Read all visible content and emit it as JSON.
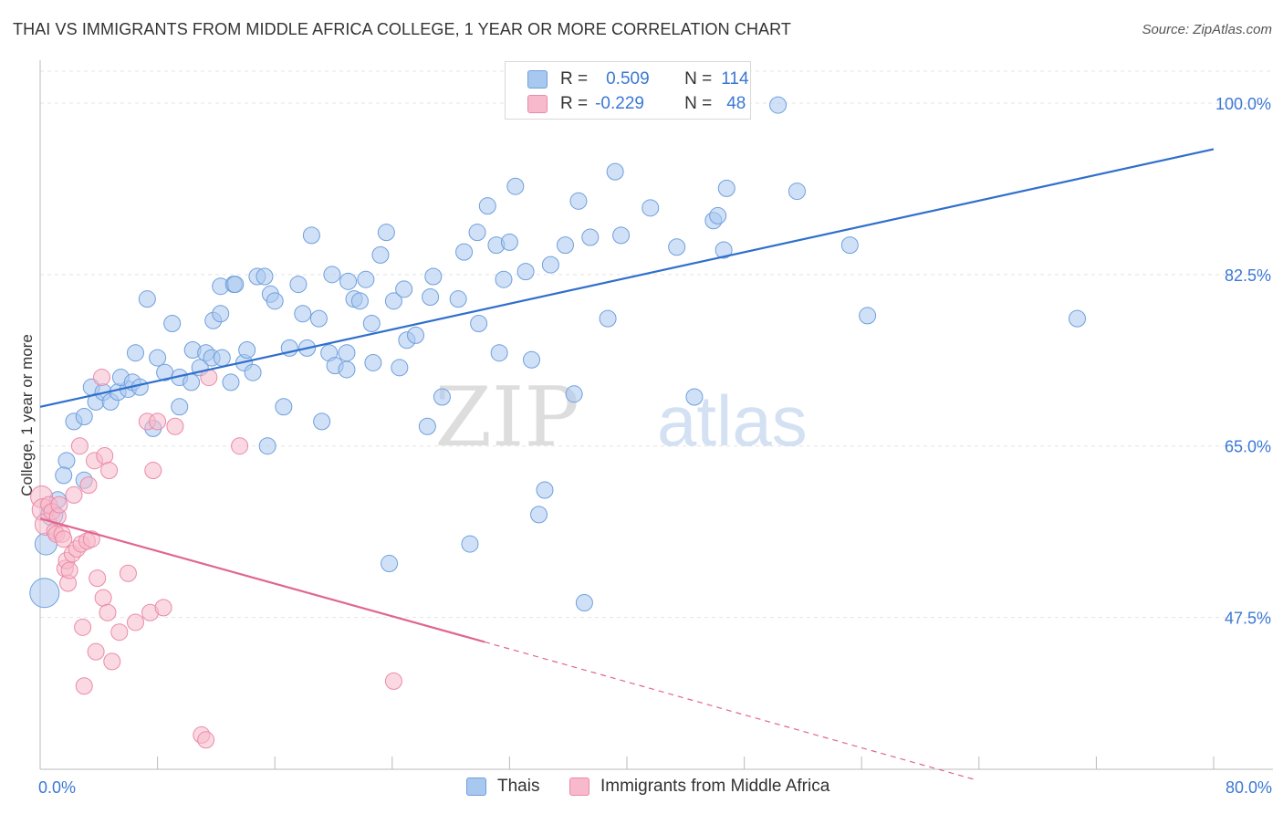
{
  "header": {
    "title": "THAI VS IMMIGRANTS FROM MIDDLE AFRICA COLLEGE, 1 YEAR OR MORE CORRELATION CHART",
    "source": "Source: ZipAtlas.com"
  },
  "legend": {
    "r_label": "R =",
    "n_label": "N =",
    "series": [
      {
        "r": "0.509",
        "n": "114"
      },
      {
        "r": "-0.229",
        "n": "48"
      }
    ]
  },
  "bottom_legend": [
    "Thais",
    "Immigrants from Middle Africa"
  ],
  "watermark": {
    "zip": "ZIP",
    "atlas": "atlas"
  },
  "colors": {
    "blue_fill": "#a9c8f0",
    "blue_stroke": "#6f9fdc",
    "blue_line": "#2f6fcc",
    "pink_fill": "#f7b9cb",
    "pink_stroke": "#ea8aa8",
    "pink_line": "#e0668f",
    "grid": "#e4e4e4",
    "tick_text": "#3b78d4"
  },
  "chart_data": {
    "type": "scatter",
    "title": "THAI VS IMMIGRANTS FROM MIDDLE AFRICA COLLEGE, 1 YEAR OR MORE CORRELATION CHART",
    "xlabel": "",
    "ylabel": "College, 1 year or more",
    "x_tick_labels": [
      "0.0%",
      "80.0%"
    ],
    "y_tick_labels": [
      "100.0%",
      "82.5%",
      "65.0%",
      "47.5%"
    ],
    "y_ticks": [
      100.0,
      82.5,
      65.0,
      47.5
    ],
    "xlim": [
      0,
      80
    ],
    "ylim": [
      32,
      104
    ],
    "grid": true,
    "series": [
      {
        "name": "Thais",
        "r": 0.509,
        "n": 114,
        "trend": {
          "x": [
            0,
            80
          ],
          "y": [
            69.0,
            95.3
          ],
          "style": "solid"
        },
        "points": [
          [
            0.3,
            50.0
          ],
          [
            0.4,
            55.0
          ],
          [
            0.8,
            58.0
          ],
          [
            1.2,
            59.5
          ],
          [
            1.8,
            63.5
          ],
          [
            1.6,
            62.0
          ],
          [
            3.0,
            61.5
          ],
          [
            2.3,
            67.5
          ],
          [
            3.0,
            68.0
          ],
          [
            3.5,
            71.0
          ],
          [
            3.8,
            69.5
          ],
          [
            4.3,
            70.5
          ],
          [
            4.8,
            69.5
          ],
          [
            5.3,
            70.5
          ],
          [
            6.0,
            70.8
          ],
          [
            5.5,
            72.0
          ],
          [
            6.3,
            71.5
          ],
          [
            6.8,
            71.0
          ],
          [
            6.5,
            74.5
          ],
          [
            7.7,
            66.8
          ],
          [
            8.0,
            74.0
          ],
          [
            8.5,
            72.5
          ],
          [
            9.0,
            77.5
          ],
          [
            7.3,
            80.0
          ],
          [
            9.5,
            72.0
          ],
          [
            9.5,
            69.0
          ],
          [
            10.3,
            71.5
          ],
          [
            10.4,
            74.8
          ],
          [
            10.9,
            73.0
          ],
          [
            11.3,
            74.5
          ],
          [
            11.7,
            74.0
          ],
          [
            11.8,
            77.8
          ],
          [
            12.3,
            78.5
          ],
          [
            12.4,
            74.0
          ],
          [
            12.3,
            81.3
          ],
          [
            13.0,
            71.5
          ],
          [
            13.2,
            81.5
          ],
          [
            13.3,
            81.5
          ],
          [
            13.9,
            73.5
          ],
          [
            14.1,
            74.8
          ],
          [
            14.5,
            72.5
          ],
          [
            14.8,
            82.3
          ],
          [
            15.3,
            82.3
          ],
          [
            15.5,
            65.0
          ],
          [
            15.7,
            80.5
          ],
          [
            16.0,
            79.8
          ],
          [
            16.6,
            69.0
          ],
          [
            17.0,
            75.0
          ],
          [
            17.6,
            81.5
          ],
          [
            17.9,
            78.5
          ],
          [
            18.2,
            75.0
          ],
          [
            18.5,
            86.5
          ],
          [
            19.0,
            78.0
          ],
          [
            19.2,
            67.5
          ],
          [
            19.7,
            74.5
          ],
          [
            19.9,
            82.5
          ],
          [
            20.1,
            73.2
          ],
          [
            20.9,
            72.8
          ],
          [
            20.9,
            74.5
          ],
          [
            21.0,
            81.8
          ],
          [
            21.4,
            80.0
          ],
          [
            21.8,
            79.8
          ],
          [
            22.2,
            82.0
          ],
          [
            22.6,
            77.5
          ],
          [
            22.7,
            73.5
          ],
          [
            23.2,
            84.5
          ],
          [
            23.6,
            86.8
          ],
          [
            23.8,
            53.0
          ],
          [
            24.1,
            79.8
          ],
          [
            24.5,
            73.0
          ],
          [
            24.8,
            81.0
          ],
          [
            25.0,
            75.8
          ],
          [
            25.6,
            76.3
          ],
          [
            26.4,
            67.0
          ],
          [
            26.6,
            80.2
          ],
          [
            26.8,
            82.3
          ],
          [
            27.4,
            70.0
          ],
          [
            28.5,
            80.0
          ],
          [
            28.9,
            84.8
          ],
          [
            29.3,
            55.0
          ],
          [
            29.8,
            86.8
          ],
          [
            29.9,
            77.5
          ],
          [
            30.5,
            89.5
          ],
          [
            31.1,
            85.5
          ],
          [
            31.3,
            74.5
          ],
          [
            31.6,
            82.0
          ],
          [
            32.0,
            85.8
          ],
          [
            32.4,
            91.5
          ],
          [
            33.1,
            82.8
          ],
          [
            33.5,
            73.8
          ],
          [
            34.0,
            58.0
          ],
          [
            34.4,
            60.5
          ],
          [
            34.8,
            83.5
          ],
          [
            35.8,
            85.5
          ],
          [
            36.4,
            70.3
          ],
          [
            36.7,
            90.0
          ],
          [
            37.1,
            49.0
          ],
          [
            37.5,
            86.3
          ],
          [
            38.7,
            78.0
          ],
          [
            39.2,
            93.0
          ],
          [
            39.6,
            86.5
          ],
          [
            41.6,
            89.3
          ],
          [
            43.4,
            85.3
          ],
          [
            44.6,
            70.0
          ],
          [
            45.9,
            88.0
          ],
          [
            46.2,
            88.5
          ],
          [
            46.6,
            85.0
          ],
          [
            46.8,
            91.3
          ],
          [
            50.3,
            99.8
          ],
          [
            51.6,
            91.0
          ],
          [
            55.2,
            85.5
          ],
          [
            56.4,
            78.3
          ],
          [
            70.7,
            78.0
          ]
        ]
      },
      {
        "name": "Immigrants from Middle Africa",
        "r": -0.229,
        "n": 48,
        "trend": {
          "x": [
            0,
            30.3,
            63.6
          ],
          "y": [
            57.6,
            45.0,
            31.0
          ],
          "style": "solid-then-dashed"
        },
        "points": [
          [
            0.1,
            59.8
          ],
          [
            0.2,
            58.5
          ],
          [
            0.4,
            57.0
          ],
          [
            0.6,
            59.0
          ],
          [
            0.8,
            58.3
          ],
          [
            1.0,
            56.3
          ],
          [
            1.1,
            56.0
          ],
          [
            1.2,
            57.8
          ],
          [
            1.3,
            59.0
          ],
          [
            1.5,
            56.0
          ],
          [
            1.6,
            55.5
          ],
          [
            1.7,
            52.5
          ],
          [
            1.8,
            53.3
          ],
          [
            1.9,
            51.0
          ],
          [
            2.0,
            52.3
          ],
          [
            2.2,
            54.0
          ],
          [
            2.3,
            60.0
          ],
          [
            2.5,
            54.5
          ],
          [
            2.7,
            65.0
          ],
          [
            2.8,
            55.0
          ],
          [
            2.9,
            46.5
          ],
          [
            3.0,
            40.5
          ],
          [
            3.2,
            55.3
          ],
          [
            3.3,
            61.0
          ],
          [
            3.5,
            55.5
          ],
          [
            3.7,
            63.5
          ],
          [
            3.8,
            44.0
          ],
          [
            3.9,
            51.5
          ],
          [
            4.2,
            72.0
          ],
          [
            4.3,
            49.5
          ],
          [
            4.4,
            64.0
          ],
          [
            4.6,
            48.0
          ],
          [
            4.7,
            62.5
          ],
          [
            4.9,
            43.0
          ],
          [
            5.4,
            46.0
          ],
          [
            6.0,
            52.0
          ],
          [
            6.5,
            47.0
          ],
          [
            7.3,
            67.5
          ],
          [
            7.5,
            48.0
          ],
          [
            7.7,
            62.5
          ],
          [
            8.0,
            67.5
          ],
          [
            8.4,
            48.5
          ],
          [
            9.2,
            67.0
          ],
          [
            11.0,
            35.5
          ],
          [
            11.3,
            35.0
          ],
          [
            11.5,
            72.0
          ],
          [
            13.6,
            65.0
          ],
          [
            24.1,
            41.0
          ]
        ]
      }
    ]
  }
}
